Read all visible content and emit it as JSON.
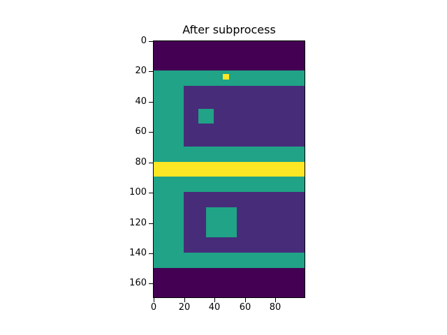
{
  "chart_data": {
    "type": "heatmap",
    "title": "After subprocess",
    "xlabel": "",
    "ylabel": "",
    "grid": false,
    "legend": null,
    "colormap": "viridis",
    "shape": [
      170,
      100
    ],
    "xlim": [
      -0.5,
      99.5
    ],
    "ylim": [
      169.5,
      -0.5
    ],
    "xticks": [
      0,
      20,
      40,
      60,
      80
    ],
    "yticks": [
      0,
      20,
      40,
      60,
      80,
      100,
      120,
      140,
      160
    ],
    "colors": {
      "background": "#440154",
      "inner": "#472c7a",
      "frame": "#20a386",
      "highlight": "#fde725"
    },
    "regions": [
      {
        "name": "top-band",
        "rows": [
          0,
          19
        ],
        "cols": [
          0,
          99
        ],
        "color": "background"
      },
      {
        "name": "upper-frame",
        "rows": [
          20,
          79
        ],
        "cols": [
          0,
          99
        ],
        "color": "frame"
      },
      {
        "name": "upper-inner",
        "rows": [
          30,
          69
        ],
        "cols": [
          20,
          99
        ],
        "color": "inner"
      },
      {
        "name": "upper-square",
        "rows": [
          45,
          54
        ],
        "cols": [
          30,
          39
        ],
        "color": "frame"
      },
      {
        "name": "yellow-dot",
        "rows": [
          22,
          25
        ],
        "cols": [
          46,
          49
        ],
        "color": "highlight"
      },
      {
        "name": "yellow-band",
        "rows": [
          80,
          89
        ],
        "cols": [
          0,
          99
        ],
        "color": "highlight"
      },
      {
        "name": "lower-frame",
        "rows": [
          90,
          149
        ],
        "cols": [
          0,
          99
        ],
        "color": "frame"
      },
      {
        "name": "lower-inner",
        "rows": [
          100,
          139
        ],
        "cols": [
          20,
          99
        ],
        "color": "inner"
      },
      {
        "name": "lower-square",
        "rows": [
          110,
          129
        ],
        "cols": [
          35,
          54
        ],
        "color": "frame"
      },
      {
        "name": "bottom-band",
        "rows": [
          150,
          169
        ],
        "cols": [
          0,
          99
        ],
        "color": "background"
      }
    ]
  }
}
